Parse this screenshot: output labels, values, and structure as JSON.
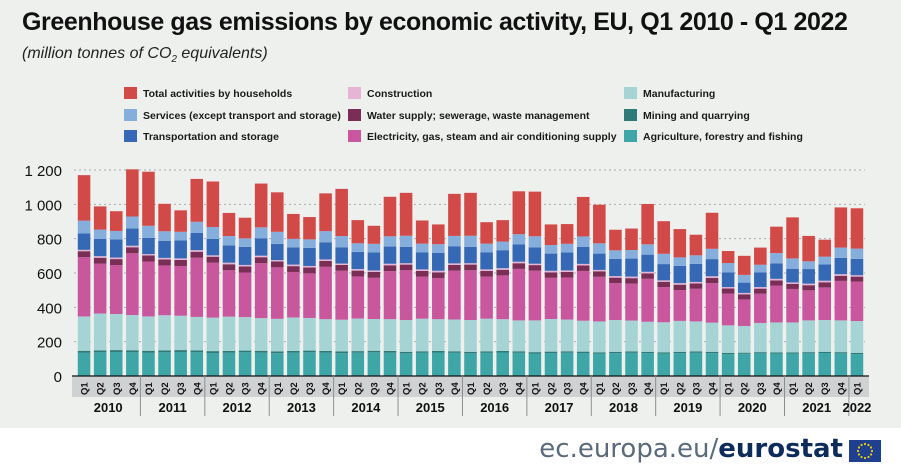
{
  "title": "Greenhouse gas emissions by economic activity, EU, Q1 2010 -  Q1 2022",
  "subtitle_prefix": "(million tonnes of CO",
  "subtitle_sub": "2",
  "subtitle_suffix": " equivalents)",
  "source_light": "ec.europa.eu/",
  "source_bold": "eurostat",
  "flag_icon": "eu-flag-icon",
  "chart_data": {
    "type": "bar",
    "stacked": true,
    "ylim": [
      0,
      1200
    ],
    "yticks": [
      0,
      200,
      400,
      600,
      800,
      1000,
      1200
    ],
    "ytick_labels": [
      "0",
      "200",
      "400",
      "600",
      "800",
      "1 000",
      "1 200"
    ],
    "grid": "horizontal dotted",
    "legend_placement": "top",
    "categories": [
      "Q1",
      "Q2",
      "Q3",
      "Q4",
      "Q1",
      "Q2",
      "Q3",
      "Q4",
      "Q1",
      "Q2",
      "Q3",
      "Q4",
      "Q1",
      "Q2",
      "Q3",
      "Q4",
      "Q1",
      "Q2",
      "Q3",
      "Q4",
      "Q1",
      "Q2",
      "Q3",
      "Q4",
      "Q1",
      "Q2",
      "Q3",
      "Q4",
      "Q1",
      "Q2",
      "Q3",
      "Q4",
      "Q1",
      "Q2",
      "Q3",
      "Q4",
      "Q1",
      "Q2",
      "Q3",
      "Q4",
      "Q1",
      "Q2",
      "Q3",
      "Q4",
      "Q1",
      "Q2",
      "Q3",
      "Q4",
      "Q1"
    ],
    "years": [
      "2010",
      "2011",
      "2012",
      "2013",
      "2014",
      "2015",
      "2016",
      "2017",
      "2018",
      "2019",
      "2020",
      "2021",
      "2022"
    ],
    "series": [
      {
        "name": "Agriculture, forestry and fishing",
        "color": "#3ea6a6",
        "values": [
          135,
          138,
          140,
          138,
          135,
          138,
          140,
          138,
          134,
          136,
          138,
          136,
          133,
          136,
          138,
          136,
          133,
          136,
          138,
          136,
          132,
          135,
          137,
          135,
          132,
          135,
          137,
          135,
          131,
          134,
          136,
          134,
          130,
          133,
          135,
          133,
          130,
          133,
          135,
          133,
          128,
          130,
          132,
          130,
          130,
          132,
          134,
          132,
          128
        ]
      },
      {
        "name": "Mining and quarrying",
        "color": "#2e7a78",
        "values": [
          12,
          11,
          11,
          12,
          12,
          11,
          11,
          11,
          11,
          10,
          10,
          11,
          10,
          10,
          10,
          10,
          10,
          9,
          9,
          10,
          9,
          9,
          9,
          9,
          9,
          9,
          9,
          9,
          8,
          8,
          8,
          8,
          8,
          8,
          8,
          8,
          8,
          8,
          8,
          8,
          7,
          6,
          7,
          7,
          7,
          7,
          7,
          7,
          7
        ]
      },
      {
        "name": "Manufacturing",
        "color": "#a6d4d4",
        "values": [
          200,
          215,
          210,
          205,
          200,
          205,
          200,
          195,
          195,
          200,
          195,
          190,
          190,
          195,
          190,
          185,
          185,
          190,
          185,
          185,
          185,
          190,
          185,
          185,
          185,
          190,
          185,
          180,
          185,
          190,
          185,
          180,
          180,
          185,
          180,
          175,
          175,
          180,
          175,
          170,
          160,
          155,
          170,
          175,
          175,
          185,
          185,
          185,
          185
        ]
      },
      {
        "name": "Electricity, gas, steam and air conditioning supply",
        "color": "#c8579d",
        "values": [
          345,
          290,
          285,
          360,
          320,
          290,
          290,
          345,
          320,
          270,
          260,
          320,
          300,
          265,
          260,
          305,
          285,
          245,
          240,
          280,
          290,
          245,
          240,
          285,
          290,
          245,
          255,
          300,
          290,
          240,
          245,
          290,
          260,
          215,
          215,
          250,
          205,
          180,
          190,
          230,
          185,
          155,
          170,
          215,
          195,
          175,
          190,
          230,
          230
        ]
      },
      {
        "name": "Water supply; sewerage, waste management",
        "color": "#7a2e55",
        "values": [
          35,
          35,
          35,
          35,
          35,
          35,
          35,
          35,
          35,
          35,
          35,
          35,
          34,
          34,
          34,
          34,
          34,
          34,
          34,
          34,
          33,
          33,
          33,
          33,
          33,
          33,
          33,
          33,
          32,
          32,
          32,
          32,
          32,
          32,
          32,
          32,
          31,
          31,
          31,
          31,
          30,
          30,
          30,
          30,
          30,
          30,
          30,
          30,
          29
        ]
      },
      {
        "name": "Construction",
        "color": "#e6b5d5",
        "values": [
          8,
          9,
          9,
          9,
          8,
          9,
          9,
          9,
          8,
          9,
          9,
          9,
          8,
          9,
          9,
          9,
          8,
          9,
          9,
          9,
          8,
          9,
          9,
          9,
          8,
          9,
          9,
          9,
          8,
          9,
          9,
          9,
          8,
          9,
          9,
          9,
          8,
          9,
          9,
          9,
          8,
          8,
          9,
          9,
          8,
          9,
          9,
          9,
          8
        ]
      },
      {
        "name": "Transportation and storage",
        "color": "#3569b5",
        "values": [
          95,
          100,
          105,
          100,
          95,
          100,
          105,
          100,
          95,
          100,
          105,
          100,
          95,
          100,
          105,
          100,
          95,
          100,
          105,
          100,
          95,
          100,
          105,
          100,
          95,
          100,
          105,
          100,
          95,
          100,
          105,
          100,
          95,
          100,
          105,
          100,
          95,
          100,
          105,
          100,
          85,
          60,
          85,
          90,
          80,
          85,
          95,
          95,
          95
        ]
      },
      {
        "name": "Services (except transport and storage)",
        "color": "#86aedc",
        "values": [
          75,
          55,
          50,
          70,
          70,
          55,
          50,
          65,
          70,
          55,
          50,
          65,
          70,
          50,
          50,
          65,
          65,
          50,
          50,
          60,
          65,
          50,
          50,
          60,
          65,
          50,
          50,
          60,
          65,
          50,
          50,
          60,
          60,
          50,
          50,
          60,
          60,
          50,
          50,
          60,
          55,
          45,
          45,
          60,
          60,
          45,
          45,
          60,
          60
        ]
      },
      {
        "name": "Total activities by households",
        "color": "#d24a48",
        "values": [
          265,
          135,
          115,
          275,
          315,
          160,
          125,
          250,
          265,
          135,
          120,
          255,
          230,
          145,
          130,
          220,
          275,
          135,
          105,
          230,
          250,
          135,
          115,
          245,
          250,
          125,
          125,
          250,
          260,
          120,
          115,
          230,
          225,
          120,
          125,
          235,
          190,
          165,
          120,
          210,
          70,
          111,
          100,
          154,
          239,
          148,
          99,
          234,
          235
        ]
      }
    ],
    "legend_order": [
      "Total activities by households",
      "Construction",
      "Manufacturing",
      "Services (except transport and storage)",
      "Water supply; sewerage, waste management",
      "Mining and quarrying",
      "Transportation and storage",
      "Electricity, gas, steam and air conditioning supply",
      "Agriculture, forestry and fishing"
    ]
  }
}
